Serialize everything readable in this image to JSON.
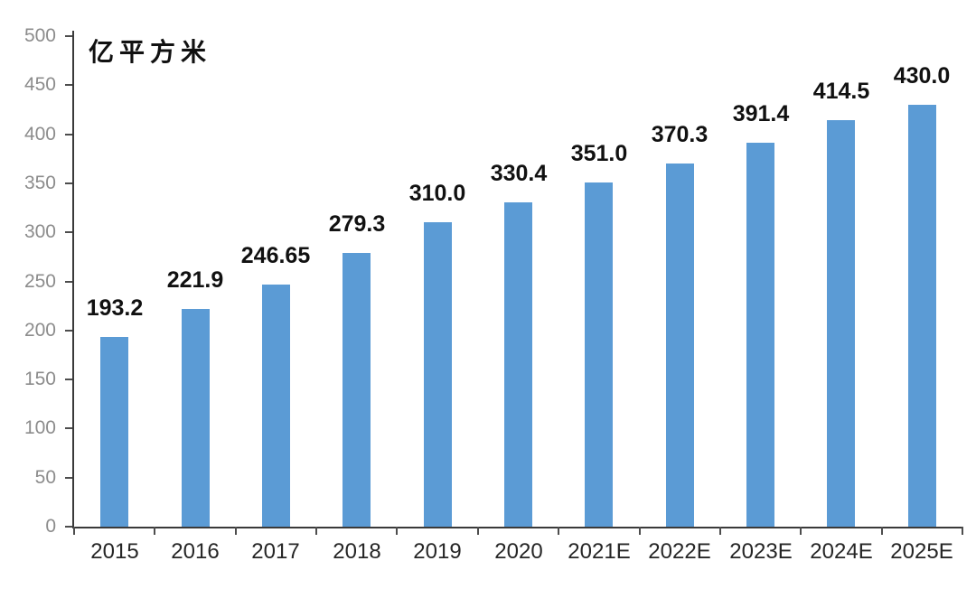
{
  "chart_data": {
    "type": "bar",
    "title": "",
    "unit_label": "亿平方米",
    "categories": [
      "2015",
      "2016",
      "2017",
      "2018",
      "2019",
      "2020",
      "2021E",
      "2022E",
      "2023E",
      "2024E",
      "2025E"
    ],
    "values": [
      193.2,
      221.9,
      246.65,
      279.3,
      310.0,
      330.4,
      351.0,
      370.3,
      391.4,
      414.5,
      430.0
    ],
    "value_labels": [
      "193.2",
      "221.9",
      "246.65",
      "279.3",
      "310.0",
      "330.4",
      "351.0",
      "370.3",
      "391.4",
      "414.5",
      "430.0"
    ],
    "xlabel": "",
    "ylabel": "",
    "ylim": [
      0,
      500
    ],
    "ytick_interval": 50,
    "yticks": [
      0,
      50,
      100,
      150,
      200,
      250,
      300,
      350,
      400,
      450,
      500
    ],
    "grid": false,
    "legend_position": "none",
    "colors": {
      "bar_fill": "#5B9BD5",
      "axis": "#3a3a3a",
      "tick": "#4d4d4d",
      "ytick_label": "#8c8c8c",
      "xtick_label": "#262626",
      "value_label": "#111111",
      "background": "#ffffff"
    }
  }
}
